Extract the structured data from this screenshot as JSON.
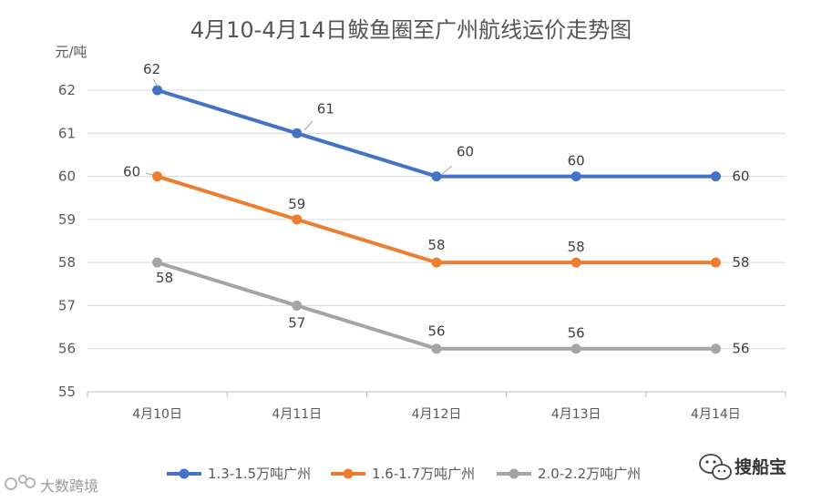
{
  "chart_data": {
    "type": "line",
    "title": "4月10-4月14日鲅鱼圈至广州航线运价走势图",
    "ylabel": "元/吨",
    "xlabel": "",
    "categories": [
      "4月10日",
      "4月11日",
      "4月12日",
      "4月13日",
      "4月14日"
    ],
    "ylim": [
      55,
      62
    ],
    "yticks": [
      55,
      56,
      57,
      58,
      59,
      60,
      61,
      62
    ],
    "grid": true,
    "legend": "bottom",
    "series": [
      {
        "name": "1.3-1.5万吨广州",
        "color": "#4472c4",
        "values": [
          62,
          61,
          60,
          60,
          60
        ]
      },
      {
        "name": "1.6-1.7万吨广州",
        "color": "#ed7d31",
        "values": [
          60,
          59,
          58,
          58,
          58
        ]
      },
      {
        "name": "2.0-2.2万吨广州",
        "color": "#a5a5a5",
        "values": [
          58,
          57,
          56,
          56,
          56
        ]
      }
    ]
  },
  "watermark": {
    "text": "大数跨境",
    "icon": "ideo-logo"
  },
  "brand": {
    "text": "搜船宝",
    "icon": "wechat-icon"
  }
}
